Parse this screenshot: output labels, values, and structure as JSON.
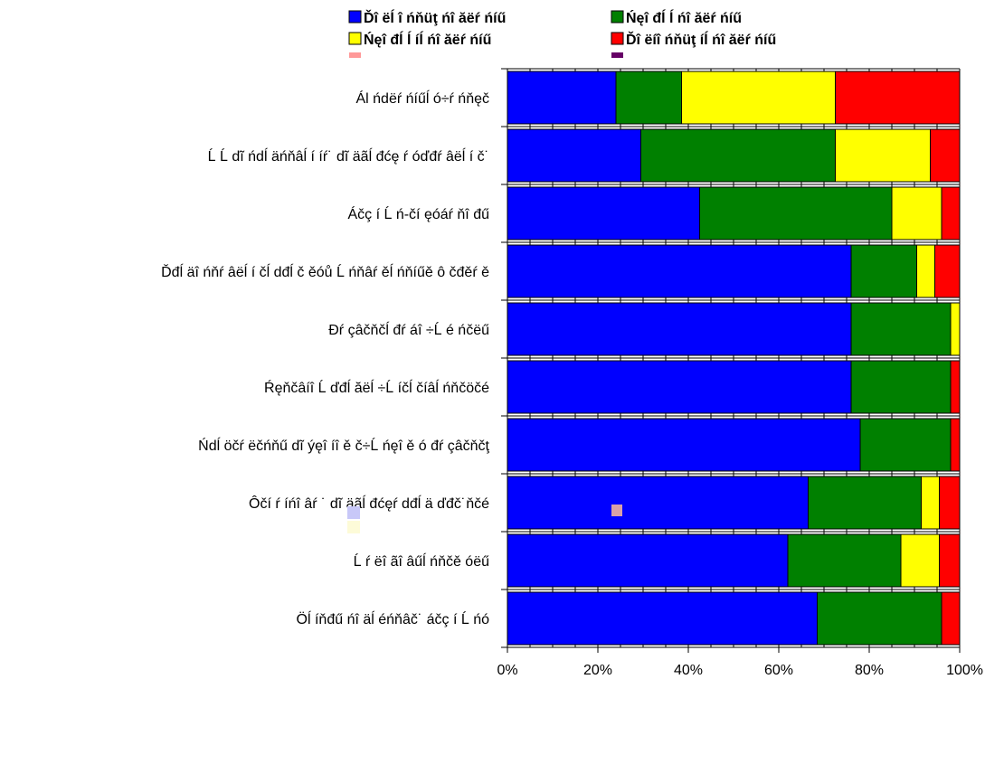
{
  "chart_data": {
    "type": "bar",
    "orientation": "horizontal",
    "stacked": "percent",
    "categories": [
      "Ál ńdëŕ ńíűĺ ó÷ŕ ńňęč",
      "Ĺ Ĺ dĩ ńdĺ äńňâĺ í íŕ˙ dĩ äãĺ đćę ŕ óďđŕ âëĺ í č˙",
      "Áčç í Ĺ ń-čí ęóáŕ ňî đű",
      "Ďđĺ äî ńňŕ âëĺ í čĺ dđĺ č ěóů Ĺ ńňâŕ ěĺ ńňíűě ô čđěŕ ě",
      "Đŕ çâčňčĺ đŕ áî ÷Ĺ é ńčëű",
      "Ŕęňčâíî Ĺ ďđĺ ăëĺ ÷Ĺ íčĺ číâĺ ńňčöčé",
      "Ńdĺ öčŕ ëčńňű dĩ ýęî íî ě č÷Ĺ ńęî ě ó đŕ çâčňčţ",
      "Ôčí ŕ íńî âŕ ˙ dĩ äãĺ đćęŕ dđĺ ä ďđč˙ňčé",
      "Ĺ ŕ ëî ãî âűĺ ńňčě óëű",
      "Öĺ íňđű ńî äĺ éńňâč˙ áčç í Ĺ ńó"
    ],
    "series": [
      {
        "name": "Ďî ëĺ î ńňüţ ńî ăëŕ ńíű",
        "color": "#0000ff",
        "values": [
          24,
          29.5,
          42.5,
          76,
          76,
          76,
          78,
          66.5,
          62,
          68.5
        ]
      },
      {
        "name": "Ńęî đĺ ĺ ńî ăëŕ ńíű",
        "color": "#008000",
        "values": [
          14.5,
          43,
          42.5,
          14.5,
          22,
          22,
          20,
          25,
          25,
          27.5
        ]
      },
      {
        "name": "Ńęî đĺ ĺ íĺ ńî ăëŕ ńíű",
        "color": "#ffff00",
        "values": [
          34,
          21,
          11,
          4,
          2,
          0,
          0,
          4,
          8.5,
          0
        ]
      },
      {
        "name": "Ďî ëíî ńňüţ íĺ ńî ăëŕ ńíű",
        "color": "#ff0000",
        "values": [
          27.5,
          6.5,
          4,
          5.5,
          0,
          2,
          2,
          4.5,
          4.5,
          4
        ]
      }
    ],
    "xlim": [
      0,
      100
    ],
    "x_ticks": [
      "0%",
      "20%",
      "40%",
      "60%",
      "80%",
      "100%"
    ],
    "grid": true,
    "legend_position": "top",
    "legend_extra_colors": [
      "#ff9999",
      "#660066"
    ]
  }
}
